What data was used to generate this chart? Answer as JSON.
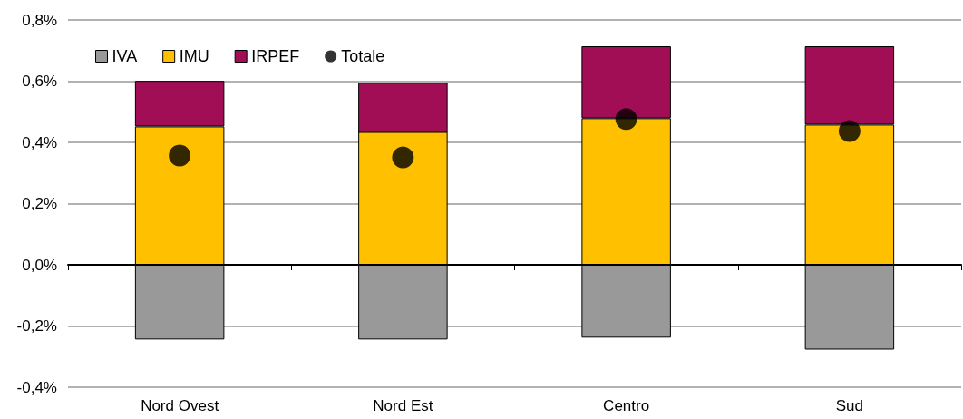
{
  "chart_data": {
    "type": "bar",
    "stacked": true,
    "categories": [
      "Nord Ovest",
      "Nord Est",
      "Centro",
      "Sud"
    ],
    "series": [
      {
        "name": "IVA",
        "color": "#999999",
        "values": [
          -0.244,
          -0.244,
          -0.238,
          -0.277
        ]
      },
      {
        "name": "IMU",
        "color": "#ffc000",
        "values": [
          0.452,
          0.434,
          0.479,
          0.458
        ]
      },
      {
        "name": "IRPEF",
        "color": "#a10e56",
        "values": [
          0.149,
          0.161,
          0.235,
          0.256
        ]
      },
      {
        "name": "Totale",
        "type": "scatter",
        "color": "#000000",
        "values": [
          0.357,
          0.351,
          0.476,
          0.437
        ]
      }
    ],
    "ylim": [
      -0.4,
      0.8
    ],
    "yticks": [
      {
        "value": -0.4,
        "label": "-0,4%"
      },
      {
        "value": -0.2,
        "label": "-0,2%"
      },
      {
        "value": 0,
        "label": "0,0%"
      },
      {
        "value": 0.2,
        "label": "0,2%"
      },
      {
        "value": 0.4,
        "label": "0,4%"
      },
      {
        "value": 0.6,
        "label": "0,6%"
      },
      {
        "value": 0.8,
        "label": "0,8%"
      }
    ],
    "grid": "y",
    "legend": "top left",
    "marker": "circle"
  }
}
